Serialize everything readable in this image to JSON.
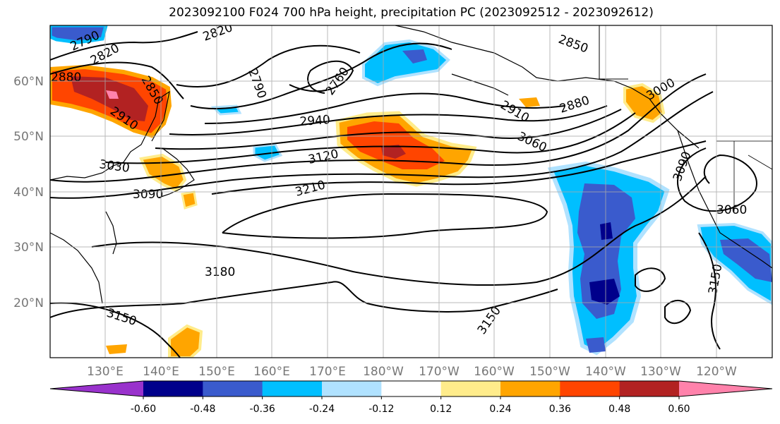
{
  "title": "2023092100 F024 700 hPa height, precipitation PC (2023092512 - 2023092612)",
  "lat_labels": [
    "60°N",
    "50°N",
    "40°N",
    "30°N",
    "20°N"
  ],
  "lon_labels": [
    "130°E",
    "140°E",
    "150°E",
    "160°E",
    "170°E",
    "180°W",
    "170°W",
    "160°W",
    "150°W",
    "140°W",
    "130°W",
    "120°W"
  ],
  "contour_labels": [
    "2790",
    "2820",
    "2820",
    "2850",
    "2790",
    "2760",
    "2850",
    "2880",
    "2880",
    "2910",
    "2910",
    "2940",
    "3000",
    "3030",
    "3060",
    "3090",
    "3090",
    "3120",
    "3210",
    "3060",
    "3180",
    "3150",
    "3150",
    "3150"
  ],
  "colorbar": {
    "ticks": [
      "-0.60",
      "-0.48",
      "-0.36",
      "-0.24",
      "-0.12",
      "0.12",
      "0.24",
      "0.36",
      "0.48",
      "0.60"
    ],
    "colors": [
      "#9932CC",
      "#00008B",
      "#3A5BCD",
      "#00BFFF",
      "#B0E2FF",
      "#FFFFFF",
      "#FFEC8B",
      "#FFA500",
      "#FF4500",
      "#B22222",
      "#FF82AB"
    ]
  },
  "colors": {
    "contour": "#000000",
    "grid": "#aaaaaa",
    "axis_label": "#777777"
  }
}
